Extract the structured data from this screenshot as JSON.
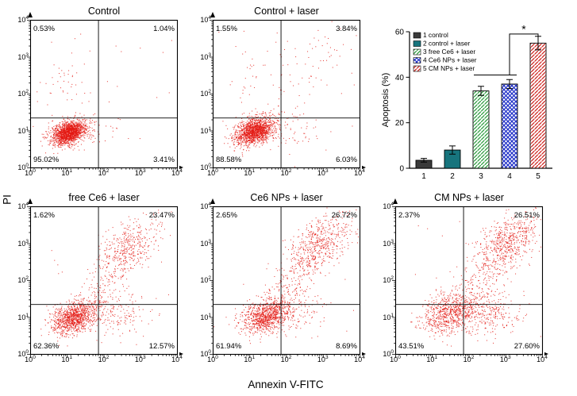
{
  "figure": {
    "xlabel": "Annexin V-FITC",
    "ylabel": "PI"
  },
  "flow_axis": {
    "exponents": [
      0,
      1,
      2,
      3,
      4
    ],
    "xlim_log10": [
      0,
      4
    ],
    "ylim_log10": [
      0,
      4
    ],
    "quadrant_x_log10": 1.85,
    "quadrant_y_log10": 1.35,
    "dot_color": "#e41812"
  },
  "chart_data": [
    {
      "type": "scatter",
      "title": "Control",
      "xlabel": "Annexin V-FITC",
      "ylabel": "PI",
      "quadrant_percent": {
        "upper_left": "0.53%",
        "upper_right": "1.04%",
        "lower_left": "95.02%",
        "lower_right": "3.41%"
      },
      "clusters": [
        {
          "cx": 1.05,
          "cy": 0.95,
          "sx": 0.24,
          "sy": 0.16,
          "rho": 0.35,
          "n": 1600
        },
        {
          "cx": 0.9,
          "cy": 2.2,
          "sx": 0.35,
          "sy": 0.7,
          "rho": 0,
          "n": 50
        },
        {
          "cx": 1.8,
          "cy": 1.0,
          "sx": 0.4,
          "sy": 0.25,
          "rho": 0,
          "n": 35
        },
        {
          "cx": 2.0,
          "cy": 2.0,
          "sx": 1.2,
          "sy": 1.2,
          "rho": 0,
          "n": 25
        }
      ]
    },
    {
      "type": "scatter",
      "title": "Control + laser",
      "xlabel": "Annexin V-FITC",
      "ylabel": "PI",
      "quadrant_percent": {
        "upper_left": "1.55%",
        "upper_right": "3.84%",
        "lower_left": "88.58%",
        "lower_right": "6.03%"
      },
      "clusters": [
        {
          "cx": 1.15,
          "cy": 1.0,
          "sx": 0.27,
          "sy": 0.18,
          "rho": 0.35,
          "n": 1500
        },
        {
          "cx": 1.2,
          "cy": 2.4,
          "sx": 0.5,
          "sy": 0.7,
          "rho": 0,
          "n": 60
        },
        {
          "cx": 2.2,
          "cy": 1.05,
          "sx": 0.45,
          "sy": 0.3,
          "rho": 0,
          "n": 60
        },
        {
          "cx": 2.9,
          "cy": 2.9,
          "sx": 0.5,
          "sy": 0.45,
          "rho": 0.4,
          "n": 45
        },
        {
          "cx": 2.0,
          "cy": 2.0,
          "sx": 1.2,
          "sy": 1.2,
          "rho": 0,
          "n": 25
        }
      ]
    },
    {
      "type": "scatter",
      "title": "free Ce6 + laser",
      "xlabel": "Annexin V-FITC",
      "ylabel": "PI",
      "quadrant_percent": {
        "upper_left": "1.62%",
        "upper_right": "23.47%",
        "lower_left": "62.36%",
        "lower_right": "12.57%"
      },
      "clusters": [
        {
          "cx": 1.2,
          "cy": 1.0,
          "sx": 0.3,
          "sy": 0.22,
          "rho": 0.35,
          "n": 1000
        },
        {
          "cx": 1.8,
          "cy": 1.6,
          "sx": 0.45,
          "sy": 0.5,
          "rho": 0.75,
          "n": 150
        },
        {
          "cx": 2.65,
          "cy": 2.85,
          "sx": 0.42,
          "sy": 0.42,
          "rho": 0.5,
          "n": 420
        },
        {
          "cx": 2.3,
          "cy": 1.05,
          "sx": 0.45,
          "sy": 0.3,
          "rho": 0,
          "n": 160
        },
        {
          "cx": 2.0,
          "cy": 2.0,
          "sx": 1.2,
          "sy": 1.2,
          "rho": 0,
          "n": 30
        }
      ]
    },
    {
      "type": "scatter",
      "title": "Ce6 NPs + laser",
      "xlabel": "Annexin V-FITC",
      "ylabel": "PI",
      "quadrant_percent": {
        "upper_left": "2.65%",
        "upper_right": "26.72%",
        "lower_left": "61.94%",
        "lower_right": "8.69%"
      },
      "clusters": [
        {
          "cx": 1.45,
          "cy": 1.05,
          "sx": 0.33,
          "sy": 0.22,
          "rho": 0.3,
          "n": 950
        },
        {
          "cx": 2.2,
          "cy": 2.0,
          "sx": 0.5,
          "sy": 0.55,
          "rho": 0.8,
          "n": 220
        },
        {
          "cx": 2.9,
          "cy": 3.0,
          "sx": 0.45,
          "sy": 0.4,
          "rho": 0.5,
          "n": 500
        },
        {
          "cx": 2.4,
          "cy": 1.1,
          "sx": 0.4,
          "sy": 0.28,
          "rho": 0,
          "n": 90
        },
        {
          "cx": 2.0,
          "cy": 2.0,
          "sx": 1.2,
          "sy": 1.2,
          "rho": 0,
          "n": 30
        }
      ]
    },
    {
      "type": "scatter",
      "title": "CM NPs + laser",
      "xlabel": "Annexin V-FITC",
      "ylabel": "PI",
      "quadrant_percent": {
        "upper_left": "2.37%",
        "upper_right": "26.51%",
        "lower_left": "43.51%",
        "lower_right": "27.60%"
      },
      "clusters": [
        {
          "cx": 1.45,
          "cy": 1.1,
          "sx": 0.38,
          "sy": 0.28,
          "rho": 0.3,
          "n": 700
        },
        {
          "cx": 2.4,
          "cy": 1.15,
          "sx": 0.5,
          "sy": 0.32,
          "rho": 0,
          "n": 320
        },
        {
          "cx": 2.5,
          "cy": 2.2,
          "sx": 0.5,
          "sy": 0.6,
          "rho": 0.7,
          "n": 200
        },
        {
          "cx": 3.05,
          "cy": 3.05,
          "sx": 0.42,
          "sy": 0.38,
          "rho": 0.5,
          "n": 520
        },
        {
          "cx": 2.0,
          "cy": 2.0,
          "sx": 1.2,
          "sy": 1.2,
          "rho": 0,
          "n": 35
        }
      ]
    },
    {
      "type": "bar",
      "categories": [
        "1",
        "2",
        "3",
        "4",
        "5"
      ],
      "values": [
        3.5,
        8,
        34,
        37,
        55
      ],
      "errors": [
        0.8,
        1.8,
        2.0,
        2.0,
        3.0
      ],
      "title": "",
      "xlabel": "",
      "ylabel": "Apoptosis (%)",
      "ylim": [
        0,
        60
      ],
      "yticks": [
        0,
        20,
        40,
        60
      ],
      "series_styles": [
        {
          "label": "1 control",
          "color": "#3a3a3a",
          "pattern": "solid"
        },
        {
          "label": "2 control + laser",
          "color": "#17747d",
          "pattern": "solid"
        },
        {
          "label": "3 free Ce6 + laser",
          "color": "#2f9e41",
          "pattern": "diag"
        },
        {
          "label": "4 Ce6 NPs + laser",
          "color": "#2030c8",
          "pattern": "cross"
        },
        {
          "label": "5 CM NPs + laser",
          "color": "#cf2722",
          "pattern": "diag"
        }
      ],
      "legend_position": "upper-left",
      "significance": {
        "group_line_bars": [
          3,
          4
        ],
        "group_line_y": 41,
        "bracket_bars": [
          4,
          5
        ],
        "bracket_y": 59,
        "label": "*"
      }
    }
  ]
}
